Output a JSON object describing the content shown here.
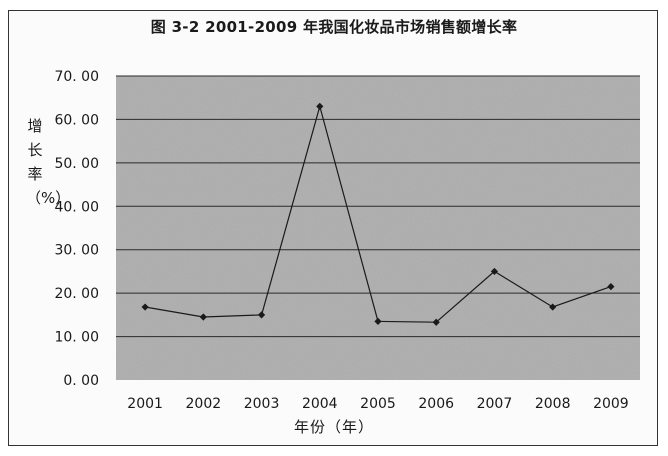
{
  "chart_data": {
    "type": "line",
    "title": "图 3-2 2001-2009 年我国化妆品市场销售额增长率",
    "xlabel": "年份（年）",
    "ylabel": "增长率（%）",
    "categories": [
      "2001",
      "2002",
      "2003",
      "2004",
      "2005",
      "2006",
      "2007",
      "2008",
      "2009"
    ],
    "series": [
      {
        "values": [
          16.8,
          14.5,
          15.0,
          63.0,
          13.5,
          13.3,
          25.0,
          16.8,
          21.5
        ]
      }
    ],
    "ylim": [
      0,
      70
    ],
    "yticks": [
      "0. 00",
      "10. 00",
      "20. 00",
      "30. 00",
      "40. 00",
      "50. 00",
      "60. 00",
      "70. 00"
    ],
    "grid": true,
    "legend": "none",
    "colors": {
      "plot_bg": "#b4b4b4",
      "line": "#1a1a1a",
      "grid": "#2a2a2a"
    }
  }
}
